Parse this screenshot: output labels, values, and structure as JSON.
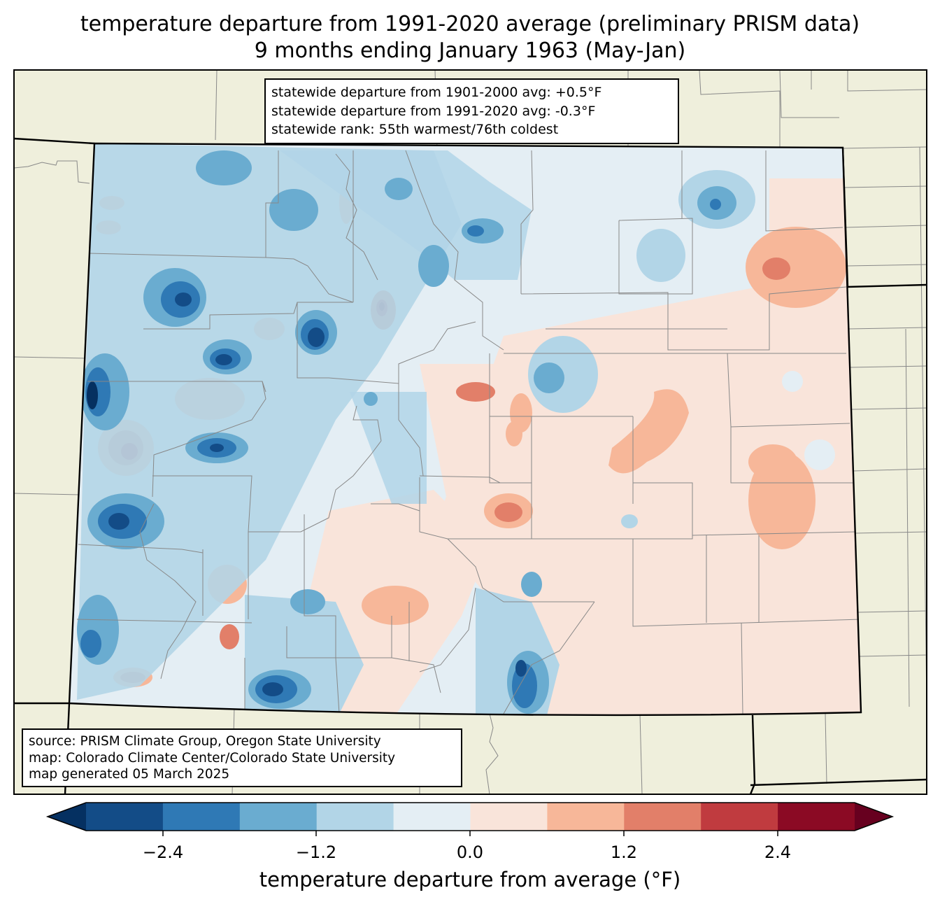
{
  "title": {
    "line1": "temperature departure from 1991-2020 average (preliminary PRISM data)",
    "line2": "9 months ending January 1963 (May-Jan)"
  },
  "stats": {
    "line1": "statewide departure from 1901-2000 avg: +0.5°F",
    "line2": "statewide departure from 1991-2020 avg: -0.3°F",
    "line3": "statewide rank: 55th warmest/76th coldest"
  },
  "source": {
    "line1": "source: PRISM Climate Group, Oregon State University",
    "line2": "map: Colorado Climate Center/Colorado State University",
    "line3": "map generated 05 March 2025"
  },
  "colorbar": {
    "label": "temperature departure from average (°F)",
    "ticks": [
      "−2.4",
      "−1.2",
      "0.0",
      "1.2",
      "2.4"
    ],
    "bins": [
      {
        "color": "#053061"
      },
      {
        "color": "#134c87"
      },
      {
        "color": "#2f79b5"
      },
      {
        "color": "#6aacd0"
      },
      {
        "color": "#b2d5e7"
      },
      {
        "color": "#e4eef4"
      },
      {
        "color": "#f9e4da"
      },
      {
        "color": "#f7b799"
      },
      {
        "color": "#e27f69"
      },
      {
        "color": "#c03b3f"
      },
      {
        "color": "#8b0a24"
      },
      {
        "color": "#67001f"
      }
    ]
  },
  "map": {
    "land_color": "#efefdc",
    "base_color": "#e4eef4"
  }
}
